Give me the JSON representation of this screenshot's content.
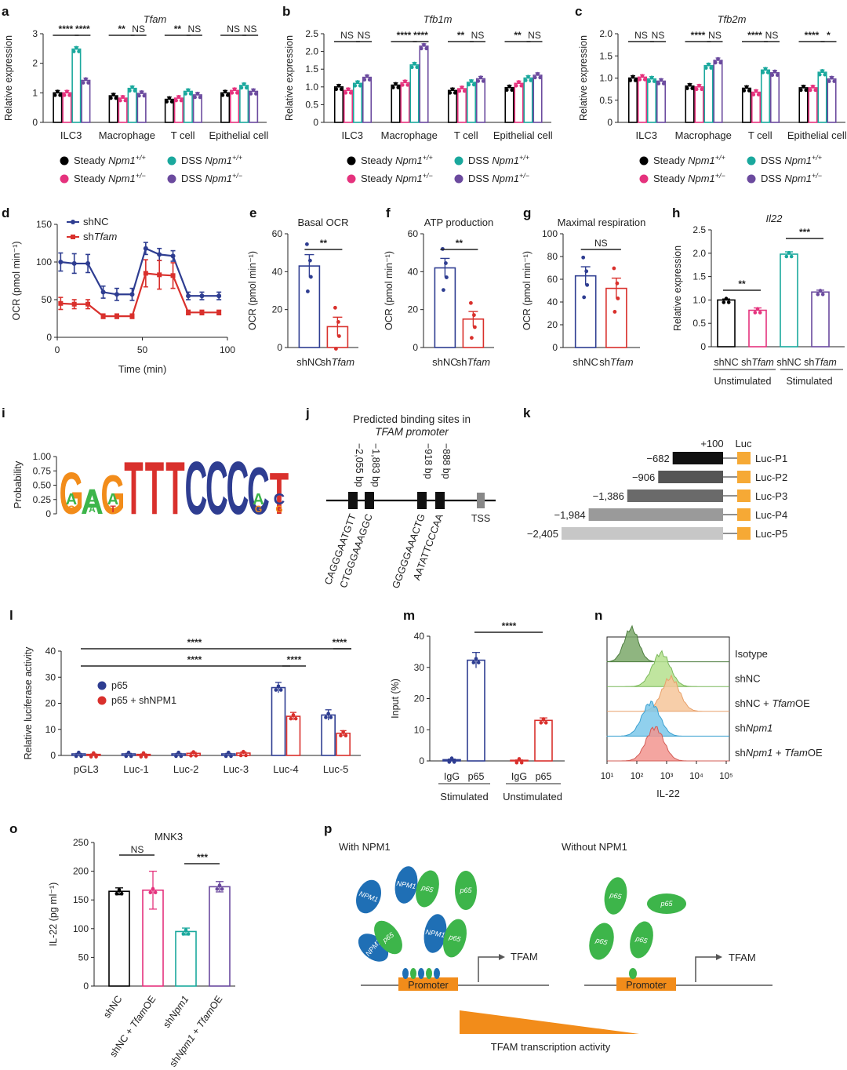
{
  "colors": {
    "black": "#000000",
    "pink": "#e5327d",
    "teal": "#1aa89d",
    "purple": "#6b4a9e",
    "blue": "#2e3d91",
    "red": "#d9302c",
    "green": "#3db54a",
    "orange": "#f28c1a",
    "luc_bar": "#f6a935",
    "logo_blue": "#1f6fb5",
    "promoter": "#f28c1a"
  },
  "panel_labels": {
    "a": "a",
    "b": "b",
    "c": "c",
    "d": "d",
    "e": "e",
    "f": "f",
    "g": "g",
    "h": "h",
    "i": "i",
    "j": "j",
    "k": "k",
    "l": "l",
    "m": "m",
    "n": "n",
    "o": "o",
    "p": "p"
  },
  "legend_abc": [
    {
      "base": "Steady ",
      "gene": "Npm1",
      "sup": "+/+",
      "color": "black"
    },
    {
      "base": "DSS ",
      "gene": "Npm1",
      "sup": "+/+",
      "color": "teal"
    },
    {
      "base": "Steady ",
      "gene": "Npm1",
      "sup": "+/−",
      "color": "pink"
    },
    {
      "base": "DSS ",
      "gene": "Npm1",
      "sup": "+/−",
      "color": "purple"
    }
  ],
  "chart_data": [
    {
      "id": "a",
      "type": "bar",
      "title": "Tfam",
      "ylabel": "Relative expression",
      "ylim": [
        0,
        3
      ],
      "yticks": [
        "0",
        "1",
        "2",
        "3"
      ],
      "categories": [
        "ILC3",
        "Macrophage",
        "T cell",
        "Epithelial cell"
      ],
      "series": [
        {
          "name": "Steady Npm1+/+",
          "values": [
            1.0,
            0.9,
            0.78,
            1.0
          ]
        },
        {
          "name": "Steady Npm1+/-",
          "values": [
            1.0,
            0.82,
            0.82,
            1.08
          ]
        },
        {
          "name": "DSS Npm1+/+",
          "values": [
            2.48,
            1.15,
            1.05,
            1.25
          ]
        },
        {
          "name": "DSS Npm1+/-",
          "values": [
            1.42,
            0.98,
            0.93,
            1.05
          ]
        }
      ],
      "sig": [
        {
          "group": 0,
          "a": 0,
          "b": 2,
          "label": "****"
        },
        {
          "group": 0,
          "a": 2,
          "b": 3,
          "label": "****"
        },
        {
          "group": 1,
          "a": 0,
          "b": 2,
          "label": "**"
        },
        {
          "group": 1,
          "a": 2,
          "b": 3,
          "label": "NS"
        },
        {
          "group": 2,
          "a": 0,
          "b": 2,
          "label": "**"
        },
        {
          "group": 2,
          "a": 2,
          "b": 3,
          "label": "NS"
        },
        {
          "group": 3,
          "a": 0,
          "b": 2,
          "label": "NS"
        },
        {
          "group": 3,
          "a": 2,
          "b": 3,
          "label": "NS"
        }
      ]
    },
    {
      "id": "b",
      "type": "bar",
      "title": "Tfb1m",
      "ylabel": "Relative expression",
      "ylim": [
        0,
        2.5
      ],
      "yticks": [
        "0",
        "0.5",
        "1.0",
        "1.5",
        "2.0",
        "2.5"
      ],
      "categories": [
        "ILC3",
        "Macrophage",
        "T cell",
        "Epithelial cell"
      ],
      "series": [
        {
          "name": "Steady Npm1+/+",
          "values": [
            1.0,
            1.05,
            0.9,
            0.98
          ]
        },
        {
          "name": "Steady Npm1+/-",
          "values": [
            0.9,
            1.12,
            0.95,
            1.1
          ]
        },
        {
          "name": "DSS Npm1+/+",
          "values": [
            1.1,
            1.62,
            1.13,
            1.25
          ]
        },
        {
          "name": "DSS Npm1+/-",
          "values": [
            1.27,
            2.15,
            1.23,
            1.33
          ]
        }
      ],
      "sig": [
        {
          "group": 0,
          "a": 0,
          "b": 2,
          "label": "NS"
        },
        {
          "group": 0,
          "a": 2,
          "b": 3,
          "label": "NS"
        },
        {
          "group": 1,
          "a": 0,
          "b": 2,
          "label": "****"
        },
        {
          "group": 1,
          "a": 2,
          "b": 3,
          "label": "****"
        },
        {
          "group": 2,
          "a": 0,
          "b": 2,
          "label": "**"
        },
        {
          "group": 2,
          "a": 2,
          "b": 3,
          "label": "NS"
        },
        {
          "group": 3,
          "a": 0,
          "b": 2,
          "label": "**"
        },
        {
          "group": 3,
          "a": 2,
          "b": 3,
          "label": "NS"
        }
      ]
    },
    {
      "id": "c",
      "type": "bar",
      "title": "Tfb2m",
      "ylabel": "Relative expression",
      "ylim": [
        0,
        2.0
      ],
      "yticks": [
        "0",
        "0.5",
        "1.0",
        "1.5",
        "2.0"
      ],
      "categories": [
        "ILC3",
        "Macrophage",
        "T cell",
        "Epithelial cell"
      ],
      "series": [
        {
          "name": "Steady Npm1+/+",
          "values": [
            1.0,
            0.82,
            0.77,
            0.78
          ]
        },
        {
          "name": "Steady Npm1+/-",
          "values": [
            1.02,
            0.8,
            0.68,
            0.78
          ]
        },
        {
          "name": "DSS Npm1+/+",
          "values": [
            0.98,
            1.28,
            1.18,
            1.13
          ]
        },
        {
          "name": "DSS Npm1+/-",
          "values": [
            0.93,
            1.4,
            1.12,
            0.98
          ]
        }
      ],
      "sig": [
        {
          "group": 0,
          "a": 0,
          "b": 2,
          "label": "NS"
        },
        {
          "group": 0,
          "a": 2,
          "b": 3,
          "label": "NS"
        },
        {
          "group": 1,
          "a": 0,
          "b": 2,
          "label": "****"
        },
        {
          "group": 1,
          "a": 2,
          "b": 3,
          "label": "NS"
        },
        {
          "group": 2,
          "a": 0,
          "b": 2,
          "label": "****"
        },
        {
          "group": 2,
          "a": 2,
          "b": 3,
          "label": "NS"
        },
        {
          "group": 3,
          "a": 0,
          "b": 2,
          "label": "****"
        },
        {
          "group": 3,
          "a": 2,
          "b": 3,
          "label": "*"
        }
      ]
    },
    {
      "id": "d",
      "type": "line",
      "xlabel": "Time (min)",
      "ylabel": "OCR (pmol min⁻¹)",
      "xlim": [
        0,
        100
      ],
      "ylim": [
        0,
        150
      ],
      "xticks": [
        "0",
        "50",
        "100"
      ],
      "yticks": [
        "0",
        "50",
        "100",
        "150"
      ],
      "x": [
        2,
        10,
        18,
        27,
        35,
        44,
        52,
        60,
        68,
        77,
        85,
        95
      ],
      "series": [
        {
          "name": "shNC",
          "color": "blue",
          "values": [
            100,
            98,
            98,
            60,
            57,
            57,
            118,
            110,
            108,
            55,
            55,
            55
          ],
          "err": [
            12,
            13,
            12,
            8,
            8,
            8,
            8,
            8,
            7,
            5,
            5,
            5
          ]
        },
        {
          "name": "shTfam",
          "color": "red",
          "values": [
            45,
            44,
            44,
            28,
            28,
            28,
            85,
            83,
            82,
            33,
            33,
            33
          ],
          "err": [
            8,
            6,
            6,
            3,
            3,
            3,
            18,
            19,
            17,
            3,
            3,
            3
          ]
        }
      ]
    },
    {
      "id": "e",
      "type": "bar",
      "title": "Basal OCR",
      "ylabel": "OCR (pmol min⁻¹)",
      "ylim": [
        0,
        60
      ],
      "yticks": [
        "0",
        "20",
        "40",
        "60"
      ],
      "categories": [
        "shNC",
        "shTfam"
      ],
      "values": [
        43,
        11
      ],
      "err": [
        6,
        5
      ],
      "sig": "**"
    },
    {
      "id": "f",
      "type": "bar",
      "title": "ATP production",
      "ylabel": "OCR (pmol min⁻¹)",
      "ylim": [
        0,
        60
      ],
      "yticks": [
        "0",
        "20",
        "40",
        "60"
      ],
      "categories": [
        "shNC",
        "shTfam"
      ],
      "values": [
        42,
        15
      ],
      "err": [
        5,
        4
      ],
      "sig": "**"
    },
    {
      "id": "g",
      "type": "bar",
      "title": "Maximal respiration",
      "ylabel": "OCR (pmol min⁻¹)",
      "ylim": [
        0,
        100
      ],
      "yticks": [
        "0",
        "20",
        "40",
        "60",
        "80",
        "100"
      ],
      "categories": [
        "shNC",
        "shTfam"
      ],
      "values": [
        63,
        52
      ],
      "err": [
        8,
        9
      ],
      "sig": "NS"
    },
    {
      "id": "h",
      "type": "bar",
      "title": "Il22",
      "ylabel": "Relative expression",
      "ylim": [
        0,
        2.5
      ],
      "yticks": [
        "0",
        "0.5",
        "1.0",
        "1.5",
        "2.0",
        "2.5"
      ],
      "categories": [
        "shNC",
        "shTfam",
        "shNC",
        "shTfam"
      ],
      "groups": [
        "Unstimulated",
        "Stimulated"
      ],
      "values": [
        1.0,
        0.78,
        1.98,
        1.17
      ],
      "err": [
        0.02,
        0.05,
        0.05,
        0.04
      ],
      "sig": [
        "**",
        "***"
      ]
    },
    {
      "id": "i",
      "type": "logo",
      "ylabel": "Probability",
      "yticks": [
        "0",
        "0.25",
        "0.50",
        "0.75",
        "1.00"
      ],
      "letters": [
        "G",
        "A",
        "G",
        "T",
        "T",
        "T",
        "C",
        "C",
        "C",
        "C",
        "T"
      ]
    },
    {
      "id": "j",
      "title": "Predicted binding sites in",
      "subtitle": "TFAM promoter",
      "sites": [
        "−2,055 bp",
        "−1,883 bp",
        "−918 bp",
        "−888 bp"
      ],
      "seqs": [
        "CAGGGAATGTT",
        "CTGGGAAAGGC",
        "GGGGGAAACTG",
        "AATATTCCCAA"
      ],
      "tss": "TSS"
    },
    {
      "id": "k",
      "top_label": "+100",
      "luc_label": "Luc",
      "constructs": [
        {
          "start": "−682",
          "name": "Luc-P1",
          "val": -682
        },
        {
          "start": "−906",
          "name": "Luc-P2",
          "val": -906
        },
        {
          "start": "−1,386",
          "name": "Luc-P3",
          "val": -1386
        },
        {
          "start": "−1,984",
          "name": "Luc-P4",
          "val": -1984
        },
        {
          "start": "−2,405",
          "name": "Luc-P5",
          "val": -2405
        }
      ]
    },
    {
      "id": "l",
      "type": "bar",
      "ylabel": "Relative luciferase activity",
      "ylim": [
        0,
        40
      ],
      "yticks": [
        "0",
        "10",
        "20",
        "30",
        "40"
      ],
      "categories": [
        "pGL3",
        "Luc-1",
        "Luc-2",
        "Luc-3",
        "Luc-4",
        "Luc-5"
      ],
      "series": [
        {
          "name": "p65",
          "color": "blue",
          "values": [
            0.6,
            0.6,
            0.6,
            0.6,
            26,
            15.5
          ],
          "err": [
            0.2,
            0.2,
            0.2,
            0.2,
            2,
            2
          ]
        },
        {
          "name": "p65 + shNPM1",
          "color": "red",
          "values": [
            0.4,
            0.4,
            0.8,
            0.9,
            15,
            8.5
          ],
          "err": [
            0.2,
            0.2,
            0.4,
            0.4,
            1.5,
            1
          ]
        }
      ],
      "sig": [
        "****",
        "****",
        "****",
        "****"
      ]
    },
    {
      "id": "m",
      "type": "bar",
      "ylabel": "Input (%)",
      "ylim": [
        0,
        40
      ],
      "yticks": [
        "0",
        "10",
        "20",
        "30",
        "40"
      ],
      "categories": [
        "IgG",
        "p65",
        "IgG",
        "p65"
      ],
      "groups": [
        "Stimulated",
        "Unstimulated"
      ],
      "values": [
        0.4,
        32.3,
        0.2,
        13
      ],
      "err": [
        0.2,
        2.5,
        0.1,
        0.8
      ],
      "sig": "****"
    },
    {
      "id": "n",
      "type": "histogram",
      "xlabel": "IL-22",
      "xticks": [
        "10¹",
        "10²",
        "10³",
        "10⁴",
        "10⁵"
      ],
      "samples": [
        "Isotype",
        "shNC",
        "shNC + TfamOE",
        "shNpm1",
        "shNpm1 + TfamOE"
      ]
    },
    {
      "id": "o",
      "type": "bar",
      "title": "MNK3",
      "ylabel": "IL-22 (pg ml⁻¹)",
      "ylim": [
        0,
        250
      ],
      "yticks": [
        "0",
        "50",
        "100",
        "150",
        "200",
        "250"
      ],
      "categories": [
        "shNC",
        "shNC + TfamOE",
        "shNpm1",
        "shNpm1 + TfamOE"
      ],
      "values": [
        165,
        167,
        95,
        173
      ],
      "err": [
        6,
        33,
        6,
        9
      ],
      "sig": [
        "NS",
        "***"
      ]
    }
  ],
  "panel_l": {
    "legend": [
      "p65",
      "p65 + shNPM1"
    ]
  },
  "panel_p": {
    "with": "With NPM1",
    "without": "Without NPM1",
    "npm1": "NPM1",
    "p65": "p65",
    "tfam": "TFAM",
    "promoter": "Promoter",
    "gradient": "TFAM transcription activity"
  },
  "legend_d": [
    "shNC",
    "shTfam"
  ]
}
